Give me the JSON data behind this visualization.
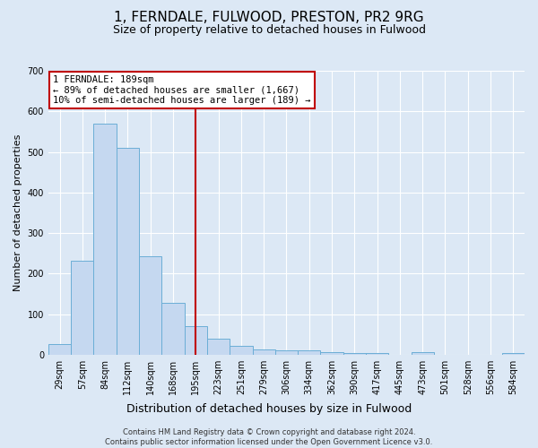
{
  "title": "1, FERNDALE, FULWOOD, PRESTON, PR2 9RG",
  "subtitle": "Size of property relative to detached houses in Fulwood",
  "xlabel": "Distribution of detached houses by size in Fulwood",
  "ylabel": "Number of detached properties",
  "categories": [
    "29sqm",
    "57sqm",
    "84sqm",
    "112sqm",
    "140sqm",
    "168sqm",
    "195sqm",
    "223sqm",
    "251sqm",
    "279sqm",
    "306sqm",
    "334sqm",
    "362sqm",
    "390sqm",
    "417sqm",
    "445sqm",
    "473sqm",
    "501sqm",
    "528sqm",
    "556sqm",
    "584sqm"
  ],
  "values": [
    25,
    232,
    570,
    510,
    242,
    128,
    70,
    40,
    22,
    13,
    10,
    10,
    6,
    5,
    5,
    0,
    7,
    0,
    0,
    0,
    5
  ],
  "bar_color": "#c5d8f0",
  "bar_edge_color": "#6baed6",
  "vline_x": 6.0,
  "vline_color": "#c00000",
  "annotation_text": "1 FERNDALE: 189sqm\n← 89% of detached houses are smaller (1,667)\n10% of semi-detached houses are larger (189) →",
  "annotation_box_facecolor": "#ffffff",
  "annotation_box_edgecolor": "#c00000",
  "footer_text": "Contains HM Land Registry data © Crown copyright and database right 2024.\nContains public sector information licensed under the Open Government Licence v3.0.",
  "ylim": [
    0,
    700
  ],
  "yticks": [
    0,
    100,
    200,
    300,
    400,
    500,
    600,
    700
  ],
  "fig_facecolor": "#dce8f5",
  "plot_facecolor": "#dce8f5",
  "grid_color": "#ffffff",
  "title_fontsize": 11,
  "subtitle_fontsize": 9,
  "xlabel_fontsize": 9,
  "ylabel_fontsize": 8,
  "tick_fontsize": 7,
  "annotation_fontsize": 7.5,
  "footer_fontsize": 6
}
